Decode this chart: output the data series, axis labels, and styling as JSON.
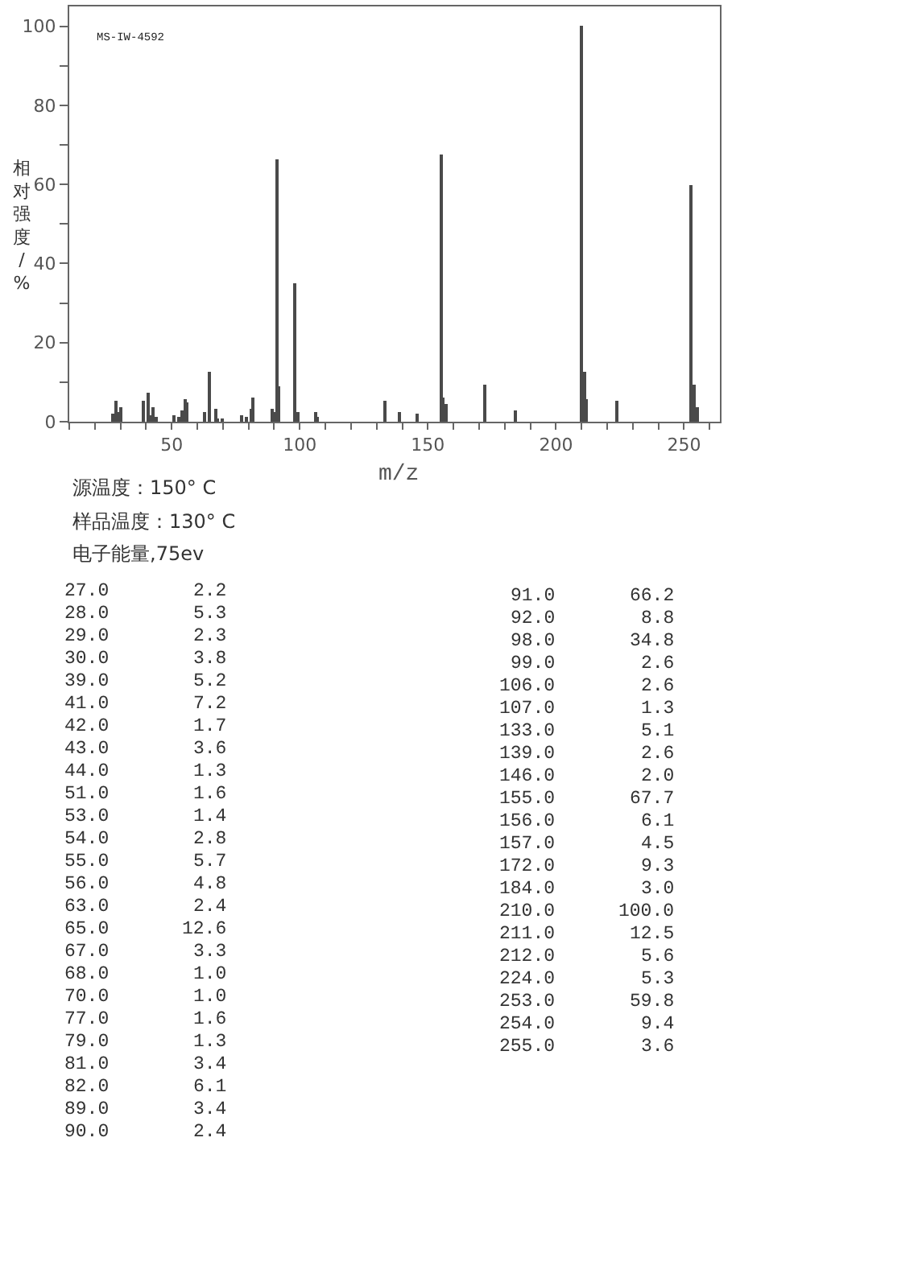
{
  "chart_data": [
    {
      "type": "bar",
      "color": "#4a4a4a",
      "x": [
        27,
        28,
        29,
        30,
        39,
        41,
        42,
        43,
        44,
        51,
        53,
        54,
        55,
        56,
        63,
        65,
        67,
        68,
        70,
        77,
        79,
        81,
        82,
        89,
        90,
        91,
        92,
        98,
        99,
        106,
        107,
        133,
        139,
        146,
        155,
        156,
        157,
        172,
        184,
        210,
        211,
        212,
        224,
        253,
        254,
        255
      ],
      "values": [
        2.2,
        5.3,
        2.3,
        3.8,
        5.2,
        7.2,
        1.7,
        3.6,
        1.3,
        1.6,
        1.4,
        2.8,
        5.7,
        4.8,
        2.4,
        12.6,
        3.3,
        1.0,
        1.0,
        1.6,
        1.3,
        3.4,
        6.1,
        3.4,
        2.4,
        66.2,
        8.8,
        34.8,
        2.6,
        2.6,
        1.3,
        5.1,
        2.6,
        2.0,
        67.7,
        6.1,
        4.5,
        9.3,
        3.0,
        100.0,
        12.5,
        5.6,
        5.3,
        59.8,
        9.4,
        3.6
      ],
      "xlim": [
        10,
        264
      ],
      "ylim": [
        0,
        105
      ],
      "xticks": [
        {
          "value": 10,
          "label": null
        },
        {
          "value": 20,
          "label": null
        },
        {
          "value": 30,
          "label": null
        },
        {
          "value": 40,
          "label": null
        },
        50,
        {
          "value": 60,
          "label": null
        },
        {
          "value": 70,
          "label": null
        },
        {
          "value": 80,
          "label": null
        },
        {
          "value": 90,
          "label": null
        },
        100,
        {
          "value": 110,
          "label": null
        },
        {
          "value": 120,
          "label": null
        },
        {
          "value": 130,
          "label": null
        },
        {
          "value": 140,
          "label": null
        },
        150,
        {
          "value": 160,
          "label": null
        },
        {
          "value": 170,
          "label": null
        },
        {
          "value": 180,
          "label": null
        },
        {
          "value": 190,
          "label": null
        },
        200,
        {
          "value": 210,
          "label": null
        },
        {
          "value": 220,
          "label": null
        },
        {
          "value": 230,
          "label": null
        },
        {
          "value": 240,
          "label": null
        },
        250,
        {
          "value": 260,
          "label": null
        }
      ],
      "yticks": [
        0,
        {
          "value": 10,
          "label": null
        },
        20,
        {
          "value": 30,
          "label": null
        },
        40,
        {
          "value": 50,
          "label": null
        },
        60,
        {
          "value": 70,
          "label": null
        },
        80,
        {
          "value": 90,
          "label": null
        },
        100
      ],
      "xlabel": "m/z",
      "ylabel": "相对强度/%",
      "annotations": [
        "MS-IW-4592",
        "源温度：150° C",
        "样品温度：130° C",
        "电子能量,75ev"
      ]
    },
    {
      "type": "other",
      "annotations": [
        "27.0",
        "2.2",
        "28.0",
        "5.3",
        "29.0",
        "2.3",
        "30.0",
        "3.8",
        "39.0",
        "5.2",
        "41.0",
        "7.2",
        "42.0",
        "1.7",
        "43.0",
        "3.6",
        "44.0",
        "1.3",
        "51.0",
        "1.6",
        "53.0",
        "1.4",
        "54.0",
        "2.8",
        "55.0",
        "5.7",
        "56.0",
        "4.8",
        "63.0",
        "2.4",
        "65.0",
        "12.6",
        "67.0",
        "3.3",
        "68.0",
        "1.0",
        "70.0",
        "1.0",
        "77.0",
        "1.6",
        "79.0",
        "1.3",
        "81.0",
        "3.4",
        "82.0",
        "6.1",
        "89.0",
        "3.4",
        "90.0",
        "2.4",
        "91.0",
        "66.2",
        "92.0",
        "8.8",
        "98.0",
        "34.8",
        "99.0",
        "2.6",
        "106.0",
        "2.6",
        "107.0",
        "1.3",
        "133.0",
        "5.1",
        "139.0",
        "2.6",
        "146.0",
        "2.0",
        "155.0",
        "67.7",
        "156.0",
        "6.1",
        "157.0",
        "4.5",
        "172.0",
        "9.3",
        "184.0",
        "3.0",
        "210.0",
        "100.0",
        "211.0",
        "12.5",
        "212.0",
        "5.6",
        "224.0",
        "5.3",
        "253.0",
        "59.8",
        "254.0",
        "9.4",
        "255.0",
        "3.6"
      ]
    }
  ]
}
